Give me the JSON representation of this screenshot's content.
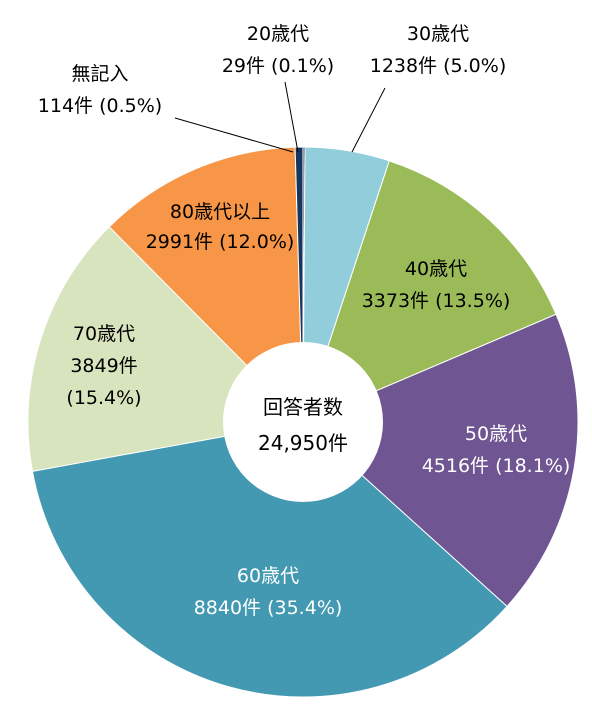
{
  "chart_data": {
    "type": "pie",
    "donut": true,
    "center_label": [
      "回答者数",
      "24,950件"
    ],
    "slices": [
      {
        "label": "20歳代",
        "count": "29件",
        "percent_text": "(0.1%)",
        "value": 29,
        "color": "#1f3864"
      },
      {
        "label": "30歳代",
        "count": "1238件",
        "percent_text": "(5.0%)",
        "value": 1238,
        "color": "#92cddc"
      },
      {
        "label": "40歳代",
        "count": "3373件",
        "percent_text": "(13.5%)",
        "value": 3373,
        "color": "#9bbb59"
      },
      {
        "label": "50歳代",
        "count": "4516件",
        "percent_text": "(18.1%)",
        "value": 4516,
        "color": "#6f5592"
      },
      {
        "label": "60歳代",
        "count": "8840件",
        "percent_text": "(35.4%)",
        "value": 8840,
        "color": "#4399b2"
      },
      {
        "label": "70歳代",
        "count": "3849件",
        "percent_text": "(15.4%)",
        "value": 3849,
        "color": "#d7e4bd"
      },
      {
        "label": "80歳代以上",
        "count": "2991件",
        "percent_text": "(12.0%)",
        "value": 2991,
        "color": "#f79646"
      },
      {
        "label": "無記入",
        "count": "114件",
        "percent_text": "(0.5%)",
        "value": 114,
        "color": "#17365d"
      }
    ],
    "label_colors": {
      "light": "#ffffff",
      "dark": "#000000"
    }
  }
}
